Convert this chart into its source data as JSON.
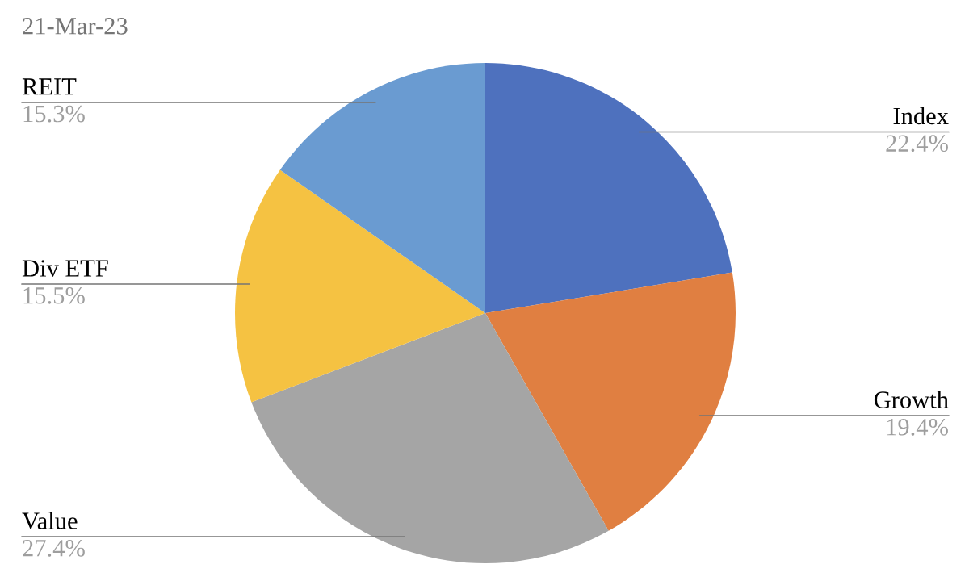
{
  "chart_data": {
    "type": "pie",
    "title": "21-Mar-23",
    "categories": [
      "Index",
      "Growth",
      "Value",
      "Div ETF",
      "REIT"
    ],
    "values": [
      22.4,
      19.4,
      27.4,
      15.5,
      15.3
    ],
    "colors": [
      "#4e71be",
      "#e07f41",
      "#a5a5a5",
      "#f5c242",
      "#6a9bd1"
    ],
    "value_labels": [
      "22.4%",
      "19.4%",
      "27.4%",
      "15.5%",
      "15.3%"
    ],
    "legend": false
  }
}
